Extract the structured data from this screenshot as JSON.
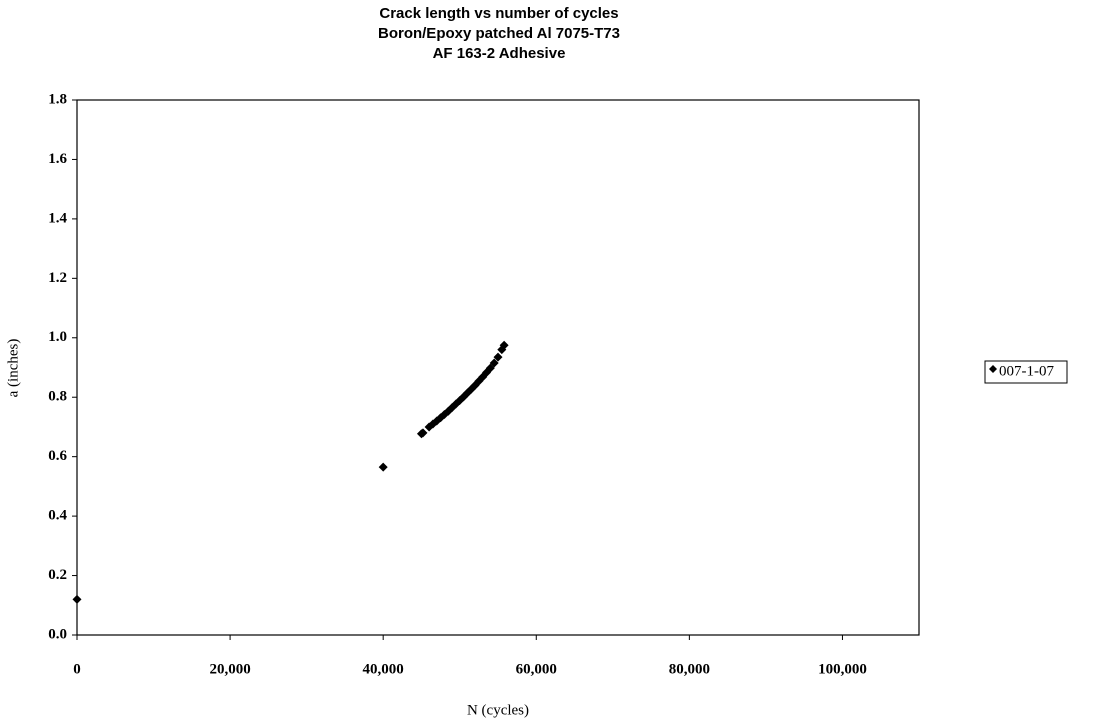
{
  "chart_data": {
    "type": "scatter",
    "title": [
      "Crack length vs number of cycles",
      "Boron/Epoxy patched Al 7075-T73",
      "AF 163-2 Adhesive"
    ],
    "x_label": "N (cycles)",
    "y_label": "a (inches)",
    "xlim": [
      0,
      110000
    ],
    "ylim": [
      0,
      1.8
    ],
    "xticks": [
      0,
      {
        "value": 20000,
        "label": "20,000"
      },
      {
        "value": 40000,
        "label": "40,000"
      },
      {
        "value": 60000,
        "label": "60,000"
      },
      {
        "value": 80000,
        "label": "80,000"
      },
      {
        "value": 100000,
        "label": "100,000"
      }
    ],
    "yticks": [
      {
        "value": 0,
        "label": "0.0"
      },
      0.2,
      0.4,
      0.6,
      0.8,
      {
        "value": 1,
        "label": "1.0"
      },
      1.2,
      1.4,
      1.6,
      1.8
    ],
    "legend": "right",
    "series": [
      {
        "name": "007-1-07",
        "color": "#000000",
        "x": [
          0,
          40000,
          45000,
          45200,
          46000,
          46500,
          47000,
          47500,
          48000,
          48500,
          49000,
          49500,
          50000,
          50500,
          51000,
          51500,
          52000,
          52500,
          53000,
          53500,
          54000,
          54500,
          55000,
          55500,
          55800
        ],
        "values": [
          0.12,
          0.565,
          0.677,
          0.68,
          0.7,
          0.71,
          0.72,
          0.731,
          0.742,
          0.753,
          0.765,
          0.777,
          0.789,
          0.801,
          0.814,
          0.827,
          0.84,
          0.854,
          0.868,
          0.883,
          0.898,
          0.915,
          0.935,
          0.96,
          0.975
        ]
      }
    ]
  }
}
